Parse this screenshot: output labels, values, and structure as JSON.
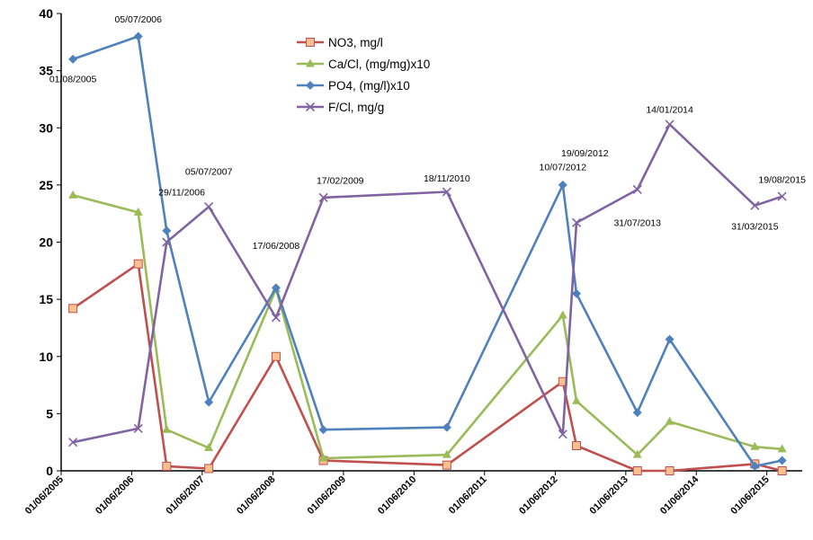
{
  "chart_data": {
    "type": "line",
    "title": "",
    "xlabel": "",
    "ylabel": "",
    "ylim": [
      0,
      40
    ],
    "xlim": [
      "2005-06-01",
      "2015-12-01"
    ],
    "yticks": [
      "0",
      "5",
      "10",
      "15",
      "20",
      "25",
      "30",
      "35",
      "40"
    ],
    "xticks": [
      {
        "date": "2005-06-01",
        "label": "01/06/2005"
      },
      {
        "date": "2006-06-01",
        "label": "01/06/2006"
      },
      {
        "date": "2007-06-01",
        "label": "01/06/2007"
      },
      {
        "date": "2008-06-01",
        "label": "01/06/2008"
      },
      {
        "date": "2009-06-01",
        "label": "01/06/2009"
      },
      {
        "date": "2010-06-01",
        "label": "01/06/2010"
      },
      {
        "date": "2011-06-01",
        "label": "01/06/2011"
      },
      {
        "date": "2012-06-01",
        "label": "01/06/2012"
      },
      {
        "date": "2013-06-01",
        "label": "01/06/2013"
      },
      {
        "date": "2014-06-01",
        "label": "01/06/2014"
      },
      {
        "date": "2015-06-01",
        "label": "01/06/2015"
      }
    ],
    "grid": false,
    "legend_position": "top-center",
    "series": [
      {
        "name": "NO3, mg/l",
        "color": "#c0504d",
        "marker": "square",
        "points": [
          {
            "x": "2005-08-01",
            "y": 14.2
          },
          {
            "x": "2006-07-05",
            "y": 18.1
          },
          {
            "x": "2006-11-29",
            "y": 0.4
          },
          {
            "x": "2007-07-05",
            "y": 0.2
          },
          {
            "x": "2008-06-17",
            "y": 10.0
          },
          {
            "x": "2009-02-17",
            "y": 0.9
          },
          {
            "x": "2010-11-18",
            "y": 0.5
          },
          {
            "x": "2012-07-10",
            "y": 7.8
          },
          {
            "x": "2012-09-19",
            "y": 2.2
          },
          {
            "x": "2013-07-31",
            "y": 0.0
          },
          {
            "x": "2014-01-14",
            "y": 0.0
          },
          {
            "x": "2015-03-31",
            "y": 0.6
          },
          {
            "x": "2015-08-19",
            "y": 0.0
          }
        ]
      },
      {
        "name": "Ca/Cl, (mg/mg)x10",
        "color": "#9bbb59",
        "marker": "triangle",
        "points": [
          {
            "x": "2005-08-01",
            "y": 24.1
          },
          {
            "x": "2006-07-05",
            "y": 22.6
          },
          {
            "x": "2006-11-29",
            "y": 3.6
          },
          {
            "x": "2007-07-05",
            "y": 2.0
          },
          {
            "x": "2008-06-17",
            "y": 15.9
          },
          {
            "x": "2009-02-17",
            "y": 1.1
          },
          {
            "x": "2010-11-18",
            "y": 1.4
          },
          {
            "x": "2012-07-10",
            "y": 13.6
          },
          {
            "x": "2012-09-19",
            "y": 6.1
          },
          {
            "x": "2013-07-31",
            "y": 1.4
          },
          {
            "x": "2014-01-14",
            "y": 4.3
          },
          {
            "x": "2015-03-31",
            "y": 2.1
          },
          {
            "x": "2015-08-19",
            "y": 1.9
          }
        ]
      },
      {
        "name": "PO4, (mg/l)x10",
        "color": "#4f81bd",
        "marker": "diamond",
        "points": [
          {
            "x": "2005-08-01",
            "y": 36.0
          },
          {
            "x": "2006-07-05",
            "y": 38.0
          },
          {
            "x": "2006-11-29",
            "y": 21.0
          },
          {
            "x": "2007-07-05",
            "y": 6.0
          },
          {
            "x": "2008-06-17",
            "y": 16.0
          },
          {
            "x": "2009-02-17",
            "y": 3.6
          },
          {
            "x": "2010-11-18",
            "y": 3.8
          },
          {
            "x": "2012-07-10",
            "y": 25.0
          },
          {
            "x": "2012-09-19",
            "y": 15.5
          },
          {
            "x": "2013-07-31",
            "y": 5.1
          },
          {
            "x": "2014-01-14",
            "y": 11.5
          },
          {
            "x": "2015-03-31",
            "y": 0.4
          },
          {
            "x": "2015-08-19",
            "y": 0.9
          }
        ]
      },
      {
        "name": "F/Cl, mg/g",
        "color": "#8064a2",
        "marker": "x",
        "points": [
          {
            "x": "2005-08-01",
            "y": 2.5
          },
          {
            "x": "2006-07-05",
            "y": 3.7
          },
          {
            "x": "2006-11-29",
            "y": 20.0
          },
          {
            "x": "2007-07-05",
            "y": 23.1
          },
          {
            "x": "2008-06-17",
            "y": 13.4
          },
          {
            "x": "2009-02-17",
            "y": 23.9
          },
          {
            "x": "2010-11-18",
            "y": 24.4
          },
          {
            "x": "2012-07-10",
            "y": 3.2
          },
          {
            "x": "2012-09-19",
            "y": 21.7
          },
          {
            "x": "2013-07-31",
            "y": 24.6
          },
          {
            "x": "2014-01-14",
            "y": 30.3
          },
          {
            "x": "2015-03-31",
            "y": 23.2
          },
          {
            "x": "2015-08-19",
            "y": 24.0
          }
        ]
      }
    ],
    "annotations": [
      {
        "text": "01/08/2005",
        "x": "2005-08-01",
        "y": 34.0
      },
      {
        "text": "05/07/2006",
        "x": "2006-07-05",
        "y": 39.2
      },
      {
        "text": "29/11/2006",
        "x": "2007-02-15",
        "y": 24.1
      },
      {
        "text": "05/07/2007",
        "x": "2007-07-05",
        "y": 25.9
      },
      {
        "text": "17/06/2008",
        "x": "2008-06-17",
        "y": 19.4
      },
      {
        "text": "17/02/2009",
        "x": "2009-05-15",
        "y": 25.1
      },
      {
        "text": "18/11/2010",
        "x": "2010-11-18",
        "y": 25.3
      },
      {
        "text": "10/07/2012",
        "x": "2012-07-10",
        "y": 26.3
      },
      {
        "text": "19/09/2012",
        "x": "2012-11-01",
        "y": 27.5
      },
      {
        "text": "31/07/2013",
        "x": "2013-07-31",
        "y": 21.4
      },
      {
        "text": "14/01/2014",
        "x": "2014-01-14",
        "y": 31.3
      },
      {
        "text": "31/03/2015",
        "x": "2015-03-31",
        "y": 21.1
      },
      {
        "text": "19/08/2015",
        "x": "2015-08-19",
        "y": 25.2
      }
    ]
  }
}
